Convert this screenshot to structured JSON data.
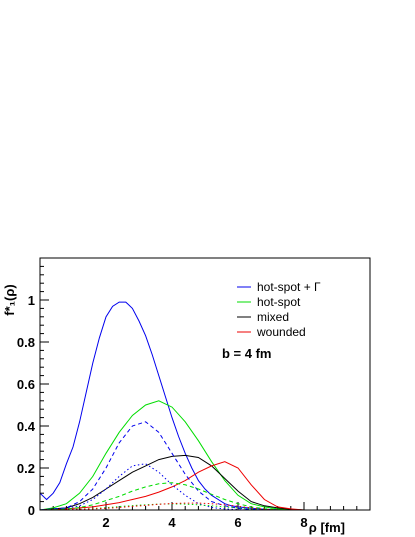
{
  "chart_data": {
    "type": "line",
    "title": "",
    "xlabel": "ρ [fm]",
    "ylabel": "f*₁(ρ)",
    "xlim": [
      0,
      10
    ],
    "ylim": [
      0,
      1.2
    ],
    "xticks": [
      2,
      4,
      6,
      8
    ],
    "xtick_labels": [
      "2",
      "4",
      "6",
      "8"
    ],
    "yticks": [
      0,
      0.2,
      0.4,
      0.6,
      0.8,
      1.0
    ],
    "ytick_labels": [
      "0",
      "0.2",
      "0.4",
      "0.6",
      "0.8",
      "1"
    ],
    "grid": false,
    "legend_position": "top-right",
    "annotation": "b = 4 fm",
    "series": [
      {
        "name": "hot-spot + Γ",
        "color": "#0000ee",
        "style": "solid",
        "x": [
          0.0,
          0.2,
          0.4,
          0.6,
          0.8,
          1.0,
          1.2,
          1.4,
          1.6,
          1.8,
          2.0,
          2.2,
          2.4,
          2.6,
          2.8,
          3.0,
          3.2,
          3.4,
          3.6,
          3.8,
          4.0,
          4.2,
          4.4,
          4.6,
          4.8,
          5.0,
          5.2,
          5.4,
          5.6,
          5.8,
          6.0,
          6.4,
          6.8,
          7.2,
          7.6,
          8.0
        ],
        "y": [
          0.08,
          0.05,
          0.08,
          0.13,
          0.22,
          0.3,
          0.42,
          0.56,
          0.7,
          0.82,
          0.92,
          0.97,
          0.99,
          0.99,
          0.96,
          0.9,
          0.83,
          0.74,
          0.64,
          0.54,
          0.44,
          0.35,
          0.27,
          0.2,
          0.14,
          0.1,
          0.07,
          0.05,
          0.03,
          0.02,
          0.015,
          0.008,
          0.004,
          0.002,
          0.001,
          0.0
        ]
      },
      {
        "name": "hot-spot",
        "color": "#00dd00",
        "style": "solid",
        "x": [
          0.0,
          0.4,
          0.8,
          1.2,
          1.6,
          2.0,
          2.4,
          2.8,
          3.2,
          3.6,
          4.0,
          4.4,
          4.8,
          5.2,
          5.6,
          6.0,
          6.4,
          6.8,
          7.2,
          7.6,
          8.0
        ],
        "y": [
          0.0,
          0.01,
          0.03,
          0.08,
          0.16,
          0.27,
          0.37,
          0.45,
          0.5,
          0.52,
          0.49,
          0.42,
          0.33,
          0.23,
          0.14,
          0.07,
          0.03,
          0.015,
          0.005,
          0.002,
          0.0
        ]
      },
      {
        "name": "mixed",
        "color": "#000000",
        "style": "solid",
        "x": [
          0.0,
          0.4,
          0.8,
          1.2,
          1.6,
          2.0,
          2.4,
          2.8,
          3.2,
          3.6,
          4.0,
          4.4,
          4.8,
          5.2,
          5.6,
          6.0,
          6.4,
          6.8,
          7.2,
          7.6,
          8.0
        ],
        "y": [
          0.0,
          0.005,
          0.01,
          0.03,
          0.06,
          0.1,
          0.14,
          0.18,
          0.21,
          0.24,
          0.255,
          0.26,
          0.25,
          0.21,
          0.15,
          0.09,
          0.04,
          0.02,
          0.01,
          0.003,
          0.0
        ]
      },
      {
        "name": "wounded",
        "color": "#ee0000",
        "style": "solid",
        "x": [
          0.0,
          0.4,
          0.8,
          1.2,
          1.6,
          2.0,
          2.4,
          2.8,
          3.2,
          3.6,
          4.0,
          4.4,
          4.8,
          5.2,
          5.6,
          6.0,
          6.4,
          6.8,
          7.2,
          7.6,
          8.0
        ],
        "y": [
          0.0,
          0.002,
          0.005,
          0.01,
          0.015,
          0.025,
          0.035,
          0.05,
          0.065,
          0.085,
          0.11,
          0.14,
          0.18,
          0.21,
          0.23,
          0.2,
          0.12,
          0.05,
          0.015,
          0.005,
          0.0
        ]
      },
      {
        "color": "#0000ee",
        "style": "dashed",
        "x": [
          0.0,
          0.4,
          0.8,
          1.2,
          1.6,
          2.0,
          2.4,
          2.8,
          3.2,
          3.6,
          4.0,
          4.4,
          4.8,
          5.2,
          5.6,
          6.0,
          6.4,
          6.8,
          7.2,
          7.6,
          8.0
        ],
        "y": [
          0.0,
          0.005,
          0.01,
          0.04,
          0.1,
          0.2,
          0.32,
          0.4,
          0.42,
          0.37,
          0.27,
          0.17,
          0.09,
          0.04,
          0.02,
          0.008,
          0.003,
          0.001,
          0.0,
          0.0,
          0.0
        ]
      },
      {
        "color": "#0000ee",
        "style": "dotted",
        "x": [
          0.0,
          0.4,
          0.8,
          1.2,
          1.6,
          2.0,
          2.4,
          2.8,
          3.2,
          3.6,
          4.0,
          4.4,
          4.8,
          5.2,
          5.6,
          6.0,
          6.4,
          6.8,
          7.2,
          7.6,
          8.0
        ],
        "y": [
          0.0,
          0.003,
          0.008,
          0.02,
          0.05,
          0.1,
          0.16,
          0.21,
          0.22,
          0.18,
          0.12,
          0.07,
          0.03,
          0.012,
          0.005,
          0.002,
          0.0,
          0.0,
          0.0,
          0.0,
          0.0
        ]
      },
      {
        "color": "#00dd00",
        "style": "dashed",
        "x": [
          0.0,
          0.4,
          0.8,
          1.2,
          1.6,
          2.0,
          2.4,
          2.8,
          3.2,
          3.6,
          4.0,
          4.4,
          4.8,
          5.2,
          5.6,
          6.0,
          6.4,
          6.8,
          7.2,
          7.6,
          8.0
        ],
        "y": [
          0.0,
          0.002,
          0.005,
          0.012,
          0.025,
          0.045,
          0.065,
          0.09,
          0.11,
          0.125,
          0.13,
          0.12,
          0.1,
          0.075,
          0.05,
          0.03,
          0.015,
          0.006,
          0.002,
          0.0,
          0.0
        ]
      },
      {
        "color": "#00dd00",
        "style": "dotted",
        "x": [
          0.0,
          0.4,
          0.8,
          1.2,
          1.6,
          2.0,
          2.4,
          2.8,
          3.2,
          3.6,
          4.0,
          4.4,
          4.8,
          5.2,
          5.6,
          6.0,
          6.4,
          6.8,
          7.2,
          7.6,
          8.0
        ],
        "y": [
          0.0,
          0.001,
          0.002,
          0.004,
          0.007,
          0.011,
          0.016,
          0.021,
          0.025,
          0.028,
          0.029,
          0.028,
          0.025,
          0.02,
          0.015,
          0.01,
          0.006,
          0.003,
          0.001,
          0.0,
          0.0
        ]
      },
      {
        "color": "#ee0000",
        "style": "dotted",
        "x": [
          0.0,
          0.4,
          0.8,
          1.2,
          1.6,
          2.0,
          2.4,
          2.8,
          3.2,
          3.6,
          4.0,
          4.4,
          4.8,
          5.2,
          5.6,
          6.0,
          6.4,
          6.8,
          7.2,
          7.6,
          8.0
        ],
        "y": [
          0.0,
          0.001,
          0.002,
          0.003,
          0.005,
          0.008,
          0.012,
          0.017,
          0.022,
          0.027,
          0.031,
          0.033,
          0.033,
          0.03,
          0.025,
          0.018,
          0.01,
          0.004,
          0.001,
          0.0,
          0.0
        ]
      }
    ]
  }
}
